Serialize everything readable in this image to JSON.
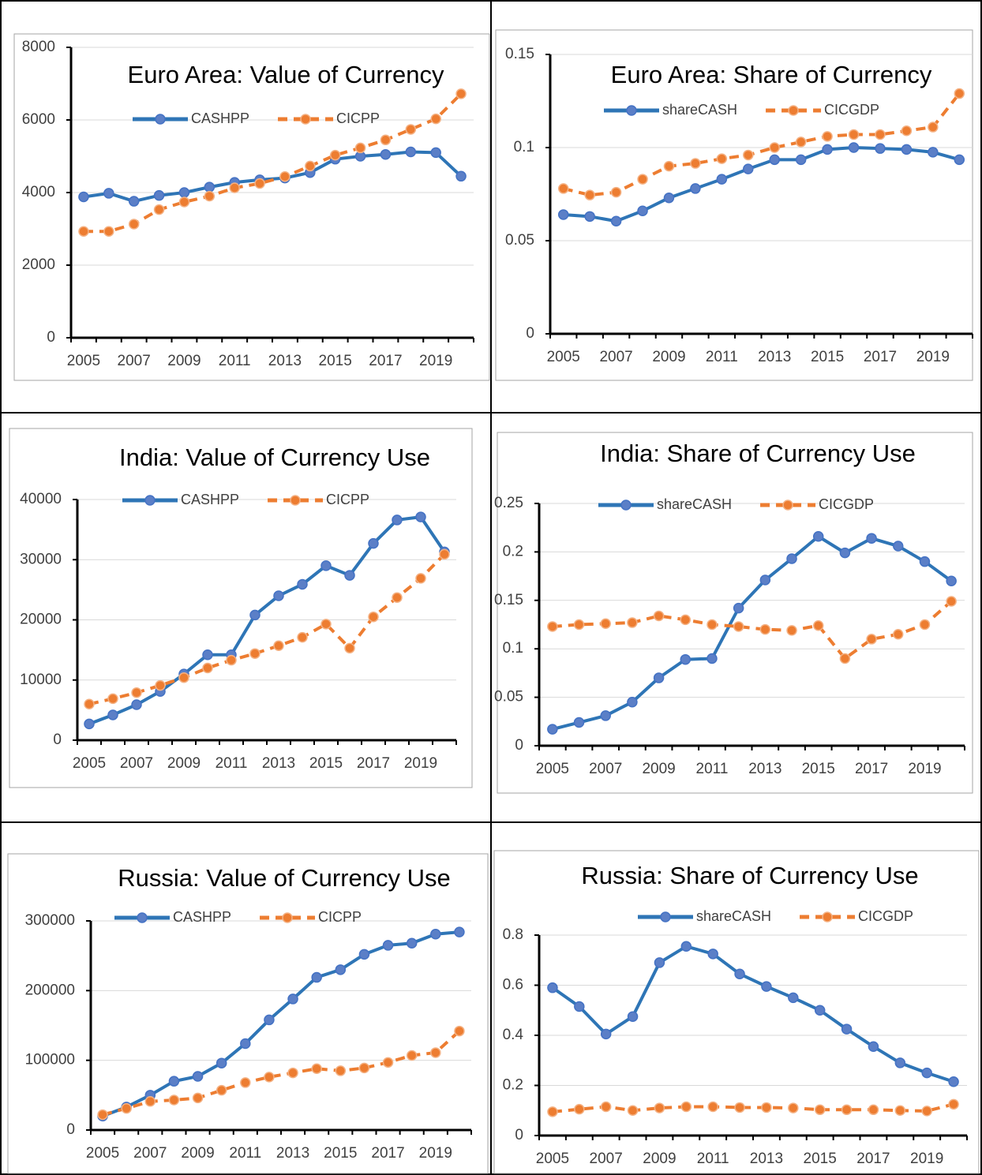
{
  "chart_data": [
    {
      "type": "line",
      "title": "Euro Area: Value of Currency",
      "categories": [
        "2005",
        null,
        "2007",
        null,
        "2009",
        null,
        "2011",
        null,
        "2013",
        null,
        "2015",
        null,
        "2017",
        null,
        "2019",
        null
      ],
      "ylim": [
        0,
        8000
      ],
      "yticks": [
        0,
        2000,
        4000,
        6000,
        8000
      ],
      "grid": true,
      "series": [
        {
          "name": "CASHPP",
          "color": "#2e75b6",
          "style": "solid",
          "values": [
            3880,
            3980,
            3760,
            3920,
            4000,
            4150,
            4280,
            4350,
            4400,
            4550,
            4920,
            5000,
            5050,
            5120,
            5100,
            4450
          ]
        },
        {
          "name": "CICPP",
          "color": "#ed7d31",
          "style": "dashed",
          "values": [
            2930,
            2930,
            3130,
            3530,
            3740,
            3900,
            4130,
            4250,
            4440,
            4730,
            5030,
            5230,
            5450,
            5740,
            6030,
            6720
          ]
        }
      ]
    },
    {
      "type": "line",
      "title": "Euro Area: Share of Currency",
      "categories": [
        "2005",
        null,
        "2007",
        null,
        "2009",
        null,
        "2011",
        null,
        "2013",
        null,
        "2015",
        null,
        "2017",
        null,
        "2019",
        null
      ],
      "ylim": [
        0,
        0.15
      ],
      "yticks": [
        0,
        0.05,
        0.1,
        0.15
      ],
      "grid": true,
      "series": [
        {
          "name": "shareCASH",
          "color": "#2e75b6",
          "style": "solid",
          "values": [
            0.064,
            0.063,
            0.0605,
            0.066,
            0.073,
            0.078,
            0.083,
            0.0885,
            0.0935,
            0.0935,
            0.099,
            0.1,
            0.0995,
            0.099,
            0.0975,
            0.0935
          ]
        },
        {
          "name": "CICGDP",
          "color": "#ed7d31",
          "style": "dashed",
          "values": [
            0.078,
            0.0745,
            0.076,
            0.083,
            0.09,
            0.0915,
            0.094,
            0.096,
            0.1,
            0.103,
            0.106,
            0.107,
            0.107,
            0.109,
            0.111,
            0.129
          ]
        }
      ]
    },
    {
      "type": "line",
      "title": "India: Value of Currency Use",
      "categories": [
        "2005",
        null,
        "2007",
        null,
        "2009",
        null,
        "2011",
        null,
        "2013",
        null,
        "2015",
        null,
        "2017",
        null,
        "2019",
        null
      ],
      "ylim": [
        0,
        40000
      ],
      "yticks": [
        0,
        10000,
        20000,
        30000,
        40000
      ],
      "grid": true,
      "series": [
        {
          "name": "CASHPP",
          "color": "#2e75b6",
          "style": "solid",
          "values": [
            2700,
            4200,
            5900,
            8100,
            11000,
            14200,
            14200,
            20800,
            24000,
            25900,
            29000,
            27400,
            32700,
            36600,
            37100,
            31300
          ]
        },
        {
          "name": "CICPP",
          "color": "#ed7d31",
          "style": "dashed",
          "values": [
            6000,
            6900,
            7900,
            9100,
            10400,
            12000,
            13300,
            14400,
            15700,
            17100,
            19300,
            15300,
            20500,
            23700,
            26900,
            30900
          ]
        }
      ]
    },
    {
      "type": "line",
      "title": "India: Share of Currency Use",
      "categories": [
        "2005",
        null,
        "2007",
        null,
        "2009",
        null,
        "2011",
        null,
        "2013",
        null,
        "2015",
        null,
        "2017",
        null,
        "2019",
        null
      ],
      "ylim": [
        0,
        0.25
      ],
      "yticks": [
        0,
        0.05,
        0.1,
        0.15,
        0.2,
        0.25
      ],
      "grid": true,
      "series": [
        {
          "name": "shareCASH",
          "color": "#2e75b6",
          "style": "solid",
          "values": [
            0.017,
            0.024,
            0.031,
            0.045,
            0.07,
            0.089,
            0.09,
            0.142,
            0.171,
            0.193,
            0.216,
            0.199,
            0.214,
            0.206,
            0.19,
            0.17
          ]
        },
        {
          "name": "CICGDP",
          "color": "#ed7d31",
          "style": "dashed",
          "values": [
            0.123,
            0.125,
            0.126,
            0.127,
            0.134,
            0.13,
            0.125,
            0.123,
            0.12,
            0.119,
            0.124,
            0.09,
            0.11,
            0.115,
            0.125,
            0.149
          ]
        }
      ]
    },
    {
      "type": "line",
      "title": "Russia: Value of Currency Use",
      "categories": [
        "2005",
        null,
        "2007",
        null,
        "2009",
        null,
        "2011",
        null,
        "2013",
        null,
        "2015",
        null,
        "2017",
        null,
        "2019",
        null
      ],
      "ylim": [
        0,
        300000
      ],
      "yticks": [
        0,
        100000,
        200000,
        300000
      ],
      "grid": true,
      "series": [
        {
          "name": "CASHPP",
          "color": "#2e75b6",
          "style": "solid",
          "values": [
            20000,
            33000,
            50000,
            70000,
            77000,
            96000,
            124000,
            158000,
            188000,
            219000,
            230000,
            252000,
            265000,
            268000,
            281000,
            284000
          ]
        },
        {
          "name": "CICPP",
          "color": "#ed7d31",
          "style": "dashed",
          "values": [
            22000,
            31000,
            41000,
            43000,
            46000,
            57000,
            68000,
            76000,
            82000,
            88000,
            85000,
            89000,
            97000,
            107000,
            111000,
            142000
          ]
        }
      ]
    },
    {
      "type": "line",
      "title": "Russia: Share of Currency Use",
      "categories": [
        "2005",
        null,
        "2007",
        null,
        "2009",
        null,
        "2011",
        null,
        "2013",
        null,
        "2015",
        null,
        "2017",
        null,
        "2019",
        null
      ],
      "ylim": [
        0,
        0.8
      ],
      "yticks": [
        0,
        0.2,
        0.4,
        0.6,
        0.8
      ],
      "grid": true,
      "series": [
        {
          "name": "shareCASH",
          "color": "#2e75b6",
          "style": "solid",
          "values": [
            0.59,
            0.515,
            0.405,
            0.475,
            0.69,
            0.755,
            0.725,
            0.645,
            0.595,
            0.55,
            0.5,
            0.425,
            0.355,
            0.29,
            0.25,
            0.215
          ]
        },
        {
          "name": "CICGDP",
          "color": "#ed7d31",
          "style": "dashed",
          "values": [
            0.095,
            0.105,
            0.115,
            0.1,
            0.11,
            0.115,
            0.115,
            0.112,
            0.112,
            0.11,
            0.103,
            0.103,
            0.103,
            0.1,
            0.098,
            0.125
          ]
        }
      ]
    }
  ]
}
